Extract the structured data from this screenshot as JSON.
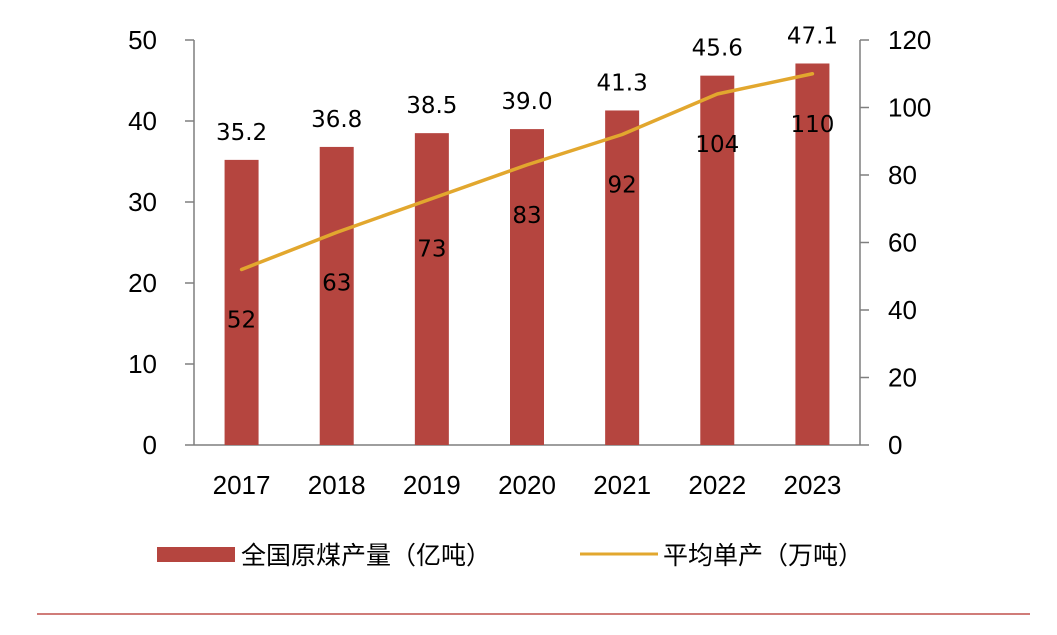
{
  "chart_data": {
    "type": "bar",
    "categories": [
      "2017",
      "2018",
      "2019",
      "2020",
      "2021",
      "2022",
      "2023"
    ],
    "series": [
      {
        "name": "全国原煤产量（亿吨）",
        "type": "bar",
        "axis": "left",
        "values": [
          35.2,
          36.8,
          38.5,
          39.0,
          41.3,
          45.6,
          47.1
        ],
        "labels": [
          "35.2",
          "36.8",
          "38.5",
          "39.0",
          "41.3",
          "45.6",
          "47.1"
        ],
        "color": "#b5453f"
      },
      {
        "name": "平均单产（万吨）",
        "type": "line",
        "axis": "right",
        "values": [
          52,
          63,
          73,
          83,
          92,
          104,
          110
        ],
        "labels": [
          "52",
          "63",
          "73",
          "83",
          "92",
          "104",
          "110"
        ],
        "color": "#e2a72e"
      }
    ],
    "y_left": {
      "range": [
        0,
        50
      ],
      "ticks": [
        0,
        10,
        20,
        30,
        40,
        50
      ],
      "tick_labels": [
        "0",
        "10",
        "20",
        "30",
        "40",
        "50"
      ]
    },
    "y_right": {
      "range": [
        0,
        120
      ],
      "ticks": [
        0,
        20,
        40,
        60,
        80,
        100,
        120
      ],
      "tick_labels": [
        "0",
        "20",
        "40",
        "60",
        "80",
        "100",
        "120"
      ]
    },
    "grid": false,
    "legend_position": "bottom",
    "separator_color": "#c0504d"
  }
}
